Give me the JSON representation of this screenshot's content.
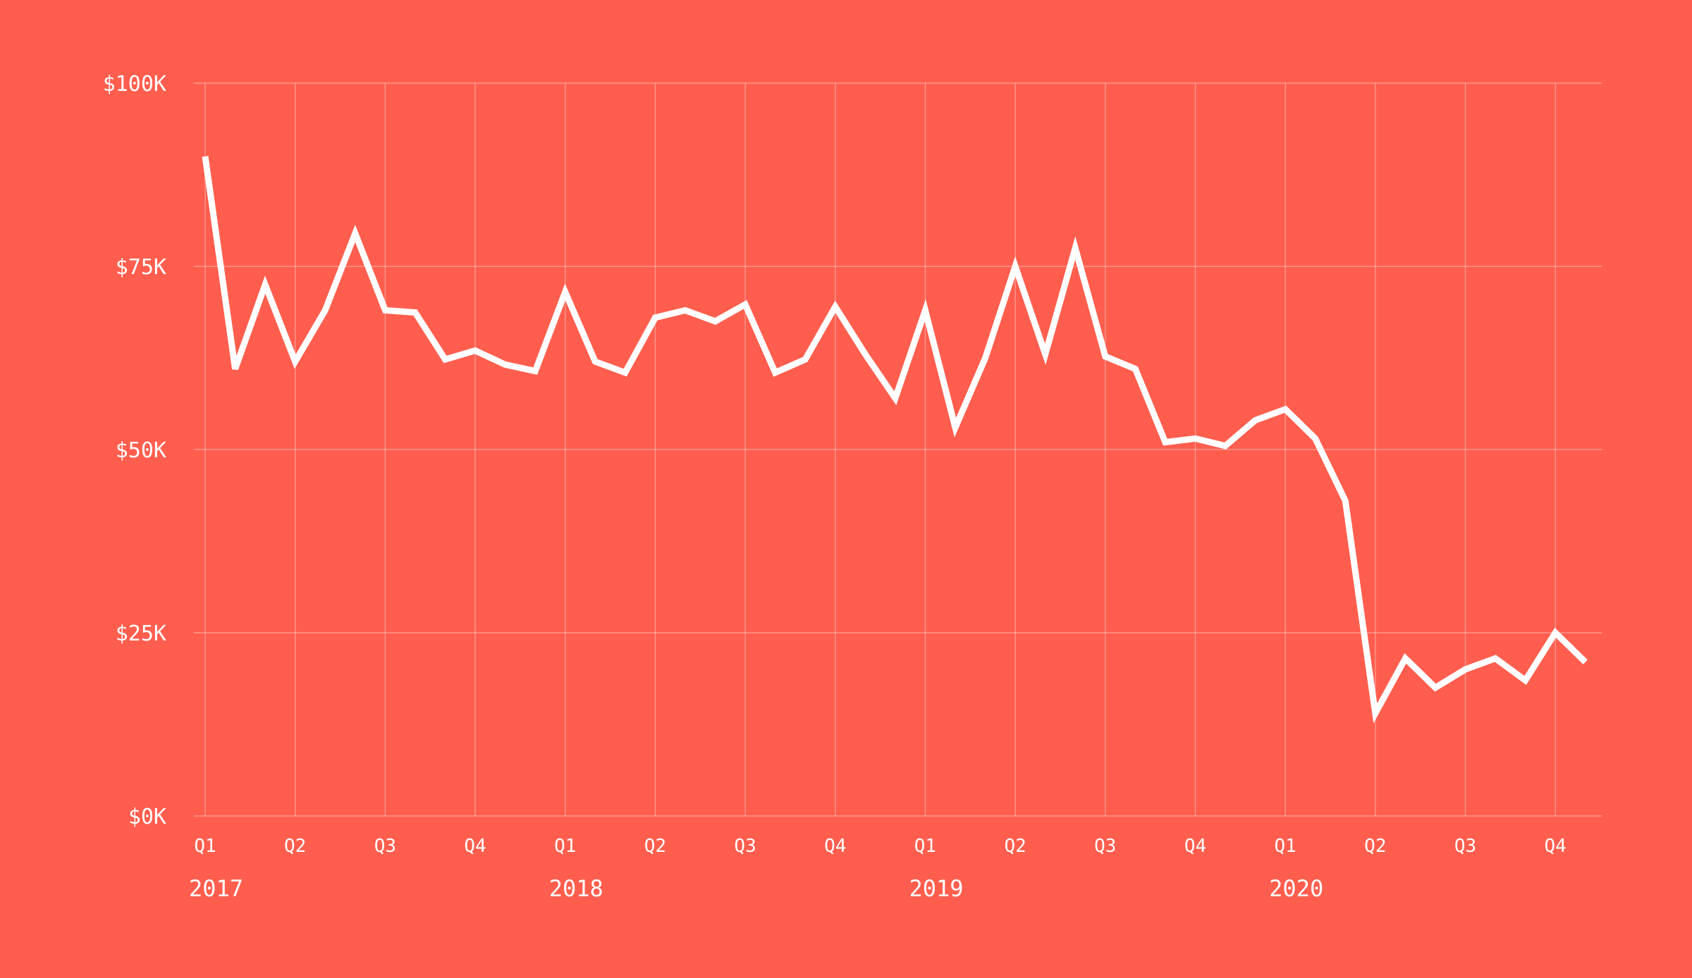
{
  "colors": {
    "background": "#FF5E4E",
    "line": "#FFFFFF",
    "grid": "#FFFFFF"
  },
  "chart_data": {
    "type": "line",
    "title": "",
    "xlabel": "",
    "ylabel": "",
    "ylim": [
      0,
      100000
    ],
    "grid": true,
    "legend": "none",
    "y_ticks": [
      {
        "value": 0,
        "label": "$0K"
      },
      {
        "value": 25000,
        "label": "$25K"
      },
      {
        "value": 50000,
        "label": "$50K"
      },
      {
        "value": 75000,
        "label": "$75K"
      },
      {
        "value": 100000,
        "label": "$100K"
      }
    ],
    "x_ticks": [
      {
        "month": 0,
        "label": "Q1"
      },
      {
        "month": 3,
        "label": "Q2"
      },
      {
        "month": 6,
        "label": "Q3"
      },
      {
        "month": 9,
        "label": "Q4"
      },
      {
        "month": 12,
        "label": "Q1"
      },
      {
        "month": 15,
        "label": "Q2"
      },
      {
        "month": 18,
        "label": "Q3"
      },
      {
        "month": 21,
        "label": "Q4"
      },
      {
        "month": 24,
        "label": "Q1"
      },
      {
        "month": 27,
        "label": "Q2"
      },
      {
        "month": 30,
        "label": "Q3"
      },
      {
        "month": 33,
        "label": "Q4"
      },
      {
        "month": 36,
        "label": "Q1"
      },
      {
        "month": 39,
        "label": "Q2"
      },
      {
        "month": 42,
        "label": "Q3"
      },
      {
        "month": 45,
        "label": "Q4"
      }
    ],
    "year_labels": [
      {
        "month": 0,
        "label": "2017"
      },
      {
        "month": 12,
        "label": "2018"
      },
      {
        "month": 24,
        "label": "2019"
      },
      {
        "month": 36,
        "label": "2020"
      }
    ],
    "series": [
      {
        "values": [
          90000,
          61000,
          72500,
          62000,
          69000,
          79500,
          69000,
          68700,
          62300,
          63500,
          61600,
          60700,
          71500,
          62000,
          60500,
          68000,
          69000,
          67500,
          69800,
          60500,
          62300,
          69500,
          63000,
          57000,
          69000,
          53000,
          62500,
          75000,
          63000,
          77500,
          62700,
          61000,
          51000,
          51500,
          50500,
          54000,
          55500,
          51500,
          43000,
          14000,
          21500,
          17500,
          20000,
          21500,
          18500,
          25000,
          21000
        ]
      }
    ]
  }
}
